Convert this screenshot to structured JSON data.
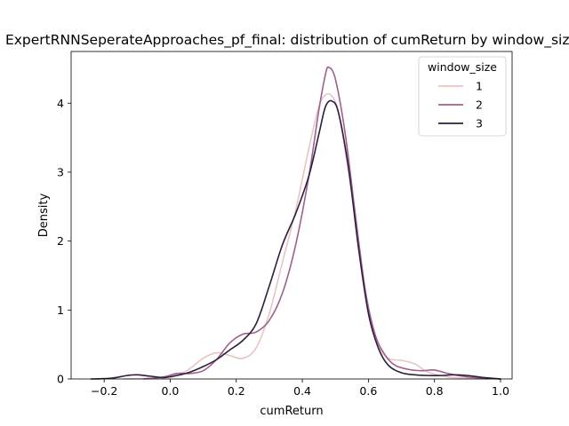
{
  "chart_data": {
    "type": "line",
    "title": "ExpertRNNSeperateApproaches_pf_final: distribution of cumReturn by window_size",
    "xlabel": "cumReturn",
    "ylabel": "Density",
    "xlim": [
      -0.3,
      1.035
    ],
    "ylim": [
      0,
      4.75
    ],
    "xticks": [
      -0.2,
      0.0,
      0.2,
      0.4,
      0.6,
      0.8,
      1.0
    ],
    "xtick_labels": [
      "−0.2",
      "0.0",
      "0.2",
      "0.4",
      "0.6",
      "0.8",
      "1.0"
    ],
    "yticks": [
      0,
      1,
      2,
      3,
      4
    ],
    "ytick_labels": [
      "0",
      "1",
      "2",
      "3",
      "4"
    ],
    "grid": false,
    "legend": {
      "title": "window_size",
      "placement": "top-right"
    },
    "series": [
      {
        "name": "1",
        "color": "#e8c4c4",
        "points": [
          [
            -0.14,
            0.0
          ],
          [
            -0.05,
            0.01
          ],
          [
            0.0,
            0.04
          ],
          [
            0.05,
            0.12
          ],
          [
            0.1,
            0.3
          ],
          [
            0.14,
            0.38
          ],
          [
            0.18,
            0.34
          ],
          [
            0.22,
            0.3
          ],
          [
            0.26,
            0.45
          ],
          [
            0.3,
            0.95
          ],
          [
            0.34,
            1.7
          ],
          [
            0.38,
            2.45
          ],
          [
            0.42,
            3.35
          ],
          [
            0.45,
            3.95
          ],
          [
            0.47,
            4.12
          ],
          [
            0.49,
            4.1
          ],
          [
            0.51,
            3.85
          ],
          [
            0.54,
            3.0
          ],
          [
            0.57,
            2.0
          ],
          [
            0.6,
            1.0
          ],
          [
            0.63,
            0.5
          ],
          [
            0.66,
            0.3
          ],
          [
            0.7,
            0.27
          ],
          [
            0.74,
            0.22
          ],
          [
            0.78,
            0.1
          ],
          [
            0.84,
            0.03
          ],
          [
            0.9,
            0.01
          ],
          [
            0.96,
            0.0
          ]
        ]
      },
      {
        "name": "2",
        "color": "#a05f8d",
        "points": [
          [
            -0.08,
            0.0
          ],
          [
            -0.02,
            0.03
          ],
          [
            0.02,
            0.08
          ],
          [
            0.06,
            0.08
          ],
          [
            0.1,
            0.12
          ],
          [
            0.14,
            0.28
          ],
          [
            0.18,
            0.52
          ],
          [
            0.22,
            0.65
          ],
          [
            0.26,
            0.68
          ],
          [
            0.3,
            0.85
          ],
          [
            0.34,
            1.25
          ],
          [
            0.38,
            1.95
          ],
          [
            0.42,
            2.95
          ],
          [
            0.45,
            3.9
          ],
          [
            0.47,
            4.42
          ],
          [
            0.48,
            4.52
          ],
          [
            0.5,
            4.35
          ],
          [
            0.53,
            3.55
          ],
          [
            0.56,
            2.4
          ],
          [
            0.59,
            1.3
          ],
          [
            0.62,
            0.65
          ],
          [
            0.65,
            0.35
          ],
          [
            0.68,
            0.2
          ],
          [
            0.72,
            0.14
          ],
          [
            0.76,
            0.12
          ],
          [
            0.8,
            0.13
          ],
          [
            0.84,
            0.08
          ],
          [
            0.9,
            0.03
          ],
          [
            0.96,
            0.01
          ],
          [
            1.0,
            0.0
          ]
        ]
      },
      {
        "name": "3",
        "color": "#2d1e3e",
        "points": [
          [
            -0.24,
            0.0
          ],
          [
            -0.18,
            0.01
          ],
          [
            -0.13,
            0.05
          ],
          [
            -0.1,
            0.06
          ],
          [
            -0.06,
            0.04
          ],
          [
            -0.02,
            0.02
          ],
          [
            0.02,
            0.05
          ],
          [
            0.06,
            0.1
          ],
          [
            0.1,
            0.18
          ],
          [
            0.14,
            0.28
          ],
          [
            0.18,
            0.42
          ],
          [
            0.22,
            0.56
          ],
          [
            0.26,
            0.8
          ],
          [
            0.3,
            1.35
          ],
          [
            0.34,
            1.95
          ],
          [
            0.38,
            2.4
          ],
          [
            0.42,
            2.95
          ],
          [
            0.45,
            3.55
          ],
          [
            0.47,
            3.95
          ],
          [
            0.49,
            4.03
          ],
          [
            0.51,
            3.85
          ],
          [
            0.54,
            3.05
          ],
          [
            0.57,
            1.9
          ],
          [
            0.6,
            0.95
          ],
          [
            0.63,
            0.45
          ],
          [
            0.66,
            0.2
          ],
          [
            0.7,
            0.09
          ],
          [
            0.74,
            0.06
          ],
          [
            0.78,
            0.05
          ],
          [
            0.82,
            0.05
          ],
          [
            0.86,
            0.06
          ],
          [
            0.9,
            0.05
          ],
          [
            0.95,
            0.02
          ],
          [
            1.0,
            0.0
          ]
        ]
      }
    ]
  }
}
